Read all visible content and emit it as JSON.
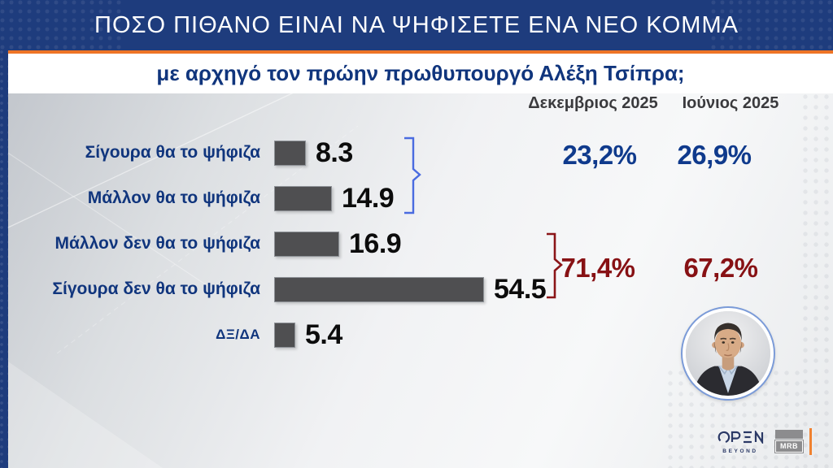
{
  "banner": {
    "title": "ΠΟΣΟ ΠΙΘΑΝΟ ΕΙΝΑΙ ΝΑ ΨΗΦΙΣΕΤΕ ΕΝΑ ΝΕΟ ΚΟΜΜΑ"
  },
  "subtitle": "με αρχηγό τον πρώην πρωθυπουργό Αλέξη Τσίπρα;",
  "columns": [
    "Δεκεμβριος 2025",
    "Ιούνιος 2025"
  ],
  "chart_data": {
    "type": "bar",
    "orientation": "horizontal",
    "categories": [
      "Σίγουρα θα το ψήφιζα",
      "Μάλλον θα το ψήφιζα",
      "Μάλλον δεν θα το ψήφιζα",
      "Σίγουρα δεν θα το ψήφιζα",
      "ΔΞ/ΔΑ"
    ],
    "values": [
      8.3,
      14.9,
      16.9,
      54.5,
      5.4
    ],
    "value_labels": [
      "8.3",
      "14.9",
      "16.9",
      "54.5",
      "5.4"
    ],
    "xlim": [
      0,
      60
    ],
    "bar_color": "#4f4f51",
    "legend_position": "none",
    "grid": false,
    "groups": [
      {
        "name": "would-vote",
        "rows": [
          0,
          1
        ],
        "dec": "23,2%",
        "jun": "26,9%"
      },
      {
        "name": "would-not-vote",
        "rows": [
          2,
          3
        ],
        "dec": "71,4%",
        "jun": "67,2%"
      }
    ]
  },
  "logos": {
    "open": "OPEN",
    "open_tagline": "BEYOND",
    "mrb": "MRB"
  },
  "photo": {
    "subject": "Αλέξης Τσίπρας"
  },
  "colors": {
    "banner_navy": "#1e3c7d",
    "accent_orange": "#ee7425",
    "label_blue": "#10357d",
    "pct_blue": "#0f3a8c",
    "pct_red": "#871114",
    "bracket_blue": "#4a6be0",
    "bracket_red": "#8b1518",
    "bar_gray": "#4f4f51"
  }
}
